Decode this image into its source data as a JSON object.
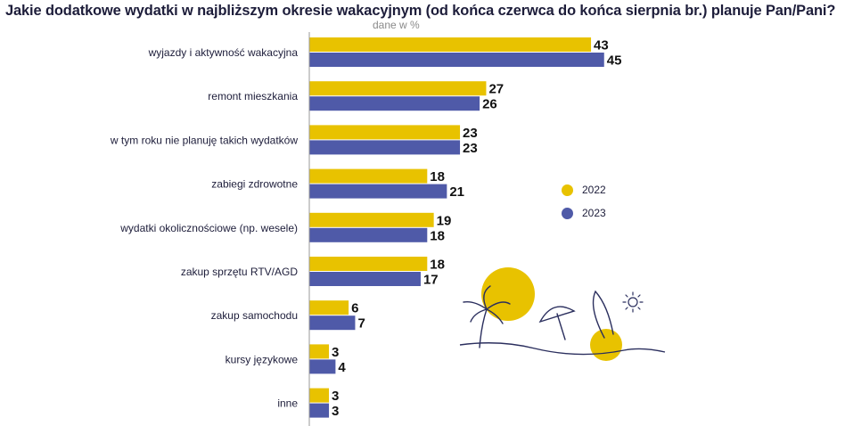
{
  "title": "Jakie dodatkowe wydatki w najbliższym okresie wakacyjnym (od końca czerwca do końca sierpnia br.) planuje Pan/Pani?",
  "subtitle": "dane w %",
  "colors": {
    "2022": "#e8c200",
    "2023": "#4f5aa8",
    "text": "#1d1d3a",
    "axis": "#9a9a9a"
  },
  "chart_data": {
    "type": "bar",
    "orientation": "horizontal",
    "title": "Jakie dodatkowe wydatki w najbliższym okresie wakacyjnym (od końca czerwca do końca sierpnia br.) planuje Pan/Pani?",
    "subtitle": "dane w %",
    "categories": [
      "wyjazdy i aktywność wakacyjna",
      "remont mieszkania",
      "w tym roku nie planuję takich wydatków",
      "zabiegi zdrowotne",
      "wydatki okolicznościowe (np. wesele)",
      "zakup sprzętu RTV/AGD",
      "zakup samochodu",
      "kursy językowe",
      "inne"
    ],
    "series": [
      {
        "name": "2022",
        "color": "#e8c200",
        "values": [
          43,
          27,
          23,
          18,
          19,
          18,
          6,
          3,
          3
        ]
      },
      {
        "name": "2023",
        "color": "#4f5aa8",
        "values": [
          45,
          26,
          23,
          21,
          18,
          17,
          7,
          4,
          3
        ]
      }
    ],
    "xlim": [
      0,
      50
    ],
    "grid": false,
    "data_labels": true,
    "legend_position": "right"
  }
}
